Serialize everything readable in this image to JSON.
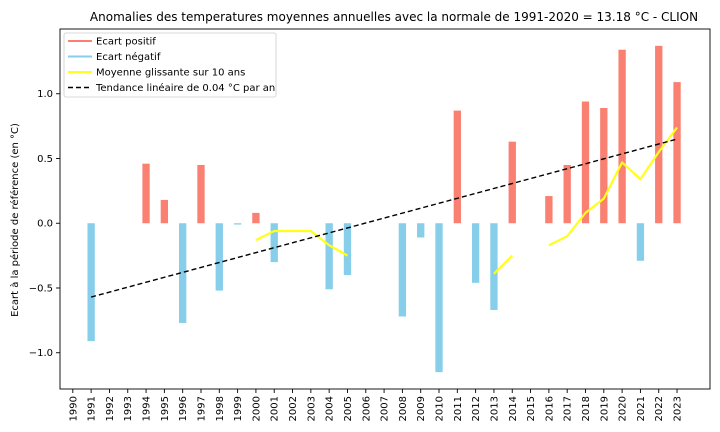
{
  "chart_data": {
    "type": "bar",
    "title": "Anomalies des temperatures moyennes annuelles avec la normale de 1991-2020 = 13.18 °C - CLION",
    "xlabel": "",
    "ylabel": "Ecart à la période de référence (en °C)",
    "categories": [
      "1990",
      "1991",
      "1992",
      "1993",
      "1994",
      "1995",
      "1996",
      "1997",
      "1998",
      "1999",
      "2000",
      "2001",
      "2002",
      "2003",
      "2004",
      "2005",
      "2006",
      "2007",
      "2008",
      "2009",
      "2010",
      "2011",
      "2012",
      "2013",
      "2014",
      "2015",
      "2016",
      "2017",
      "2018",
      "2019",
      "2020",
      "2021",
      "2022",
      "2023"
    ],
    "xlim": [
      1989.3,
      2024.8
    ],
    "ylim": [
      -1.28,
      1.5
    ],
    "yticks": [
      -1.0,
      -0.5,
      0.0,
      0.5,
      1.0
    ],
    "ytick_labels": [
      "−1.0",
      "−0.5",
      "0.0",
      "0.5",
      "1.0"
    ],
    "anomalies": [
      {
        "year": 1991,
        "value": -0.91
      },
      {
        "year": 1994,
        "value": 0.46
      },
      {
        "year": 1995,
        "value": 0.18
      },
      {
        "year": 1996,
        "value": -0.77
      },
      {
        "year": 1997,
        "value": 0.45
      },
      {
        "year": 1998,
        "value": -0.52
      },
      {
        "year": 1999,
        "value": -0.01
      },
      {
        "year": 2000,
        "value": 0.08
      },
      {
        "year": 2001,
        "value": -0.3
      },
      {
        "year": 2004,
        "value": -0.51
      },
      {
        "year": 2005,
        "value": -0.4
      },
      {
        "year": 2008,
        "value": -0.72
      },
      {
        "year": 2009,
        "value": -0.11
      },
      {
        "year": 2010,
        "value": -1.15
      },
      {
        "year": 2011,
        "value": 0.87
      },
      {
        "year": 2012,
        "value": -0.46
      },
      {
        "year": 2013,
        "value": -0.67
      },
      {
        "year": 2014,
        "value": 0.63
      },
      {
        "year": 2016,
        "value": 0.21
      },
      {
        "year": 2017,
        "value": 0.45
      },
      {
        "year": 2018,
        "value": 0.94
      },
      {
        "year": 2019,
        "value": 0.89
      },
      {
        "year": 2020,
        "value": 1.34
      },
      {
        "year": 2021,
        "value": -0.29
      },
      {
        "year": 2022,
        "value": 1.37
      },
      {
        "year": 2023,
        "value": 1.09
      }
    ],
    "moving_average_segments": [
      [
        [
          2000,
          -0.13
        ],
        [
          2001,
          -0.06
        ],
        [
          2002,
          -0.06
        ],
        [
          2003,
          -0.06
        ],
        [
          2004,
          -0.17
        ],
        [
          2005,
          -0.25
        ]
      ],
      [
        [
          2013,
          -0.39
        ],
        [
          2014,
          -0.25
        ]
      ],
      [
        [
          2016,
          -0.17
        ],
        [
          2017,
          -0.1
        ],
        [
          2018,
          0.08
        ],
        [
          2019,
          0.19
        ],
        [
          2020,
          0.47
        ],
        [
          2021,
          0.34
        ],
        [
          2022,
          0.55
        ],
        [
          2023,
          0.74
        ]
      ]
    ],
    "trend": {
      "x": [
        1991,
        2023
      ],
      "y": [
        -0.57,
        0.65
      ]
    },
    "legend": {
      "position": "top-left",
      "entries": [
        {
          "key": "positive",
          "label": "Ecart positif"
        },
        {
          "key": "negative",
          "label": "Ecart négatif"
        },
        {
          "key": "moving",
          "label": "Moyenne glissante sur 10 ans"
        },
        {
          "key": "trend",
          "label": "Tendance linéaire de 0.04 °C par an"
        }
      ]
    },
    "colors": {
      "positive": "#fa8072",
      "negative": "#87ceeb",
      "moving": "#ffff1a",
      "trend": "#000000"
    },
    "grid": false
  }
}
